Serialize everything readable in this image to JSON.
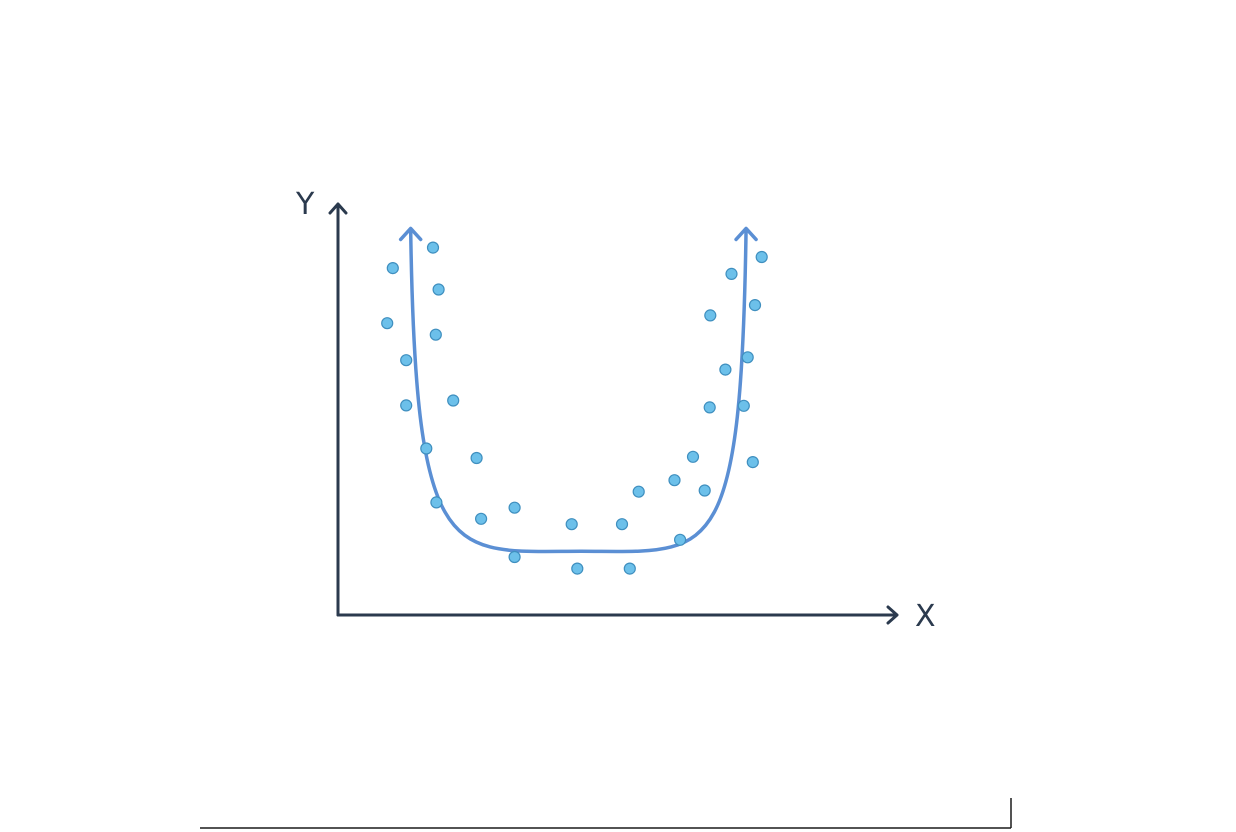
{
  "chart_data": {
    "type": "scatter",
    "xlabel": "X",
    "ylabel": "Y",
    "xlim": [
      0,
      100
    ],
    "ylim": [
      0,
      100
    ],
    "grid": false,
    "legend": "none",
    "colors": {
      "axis": "#2b3a4e",
      "points": "#6cc0ea",
      "curve": "#5b8fd4"
    },
    "series": [
      {
        "points": [
          [
            9.8,
            84.4
          ],
          [
            17.0,
            89.4
          ],
          [
            18.0,
            79.2
          ],
          [
            8.8,
            71.0
          ],
          [
            17.5,
            68.2
          ],
          [
            12.2,
            62.0
          ],
          [
            12.2,
            51.0
          ],
          [
            20.6,
            52.2
          ],
          [
            15.8,
            40.5
          ],
          [
            24.8,
            38.2
          ],
          [
            17.6,
            27.4
          ],
          [
            25.6,
            23.4
          ],
          [
            31.6,
            26.1
          ],
          [
            31.6,
            14.1
          ],
          [
            41.8,
            22.1
          ],
          [
            42.8,
            11.3
          ],
          [
            50.8,
            22.1
          ],
          [
            52.2,
            11.3
          ],
          [
            53.8,
            30.0
          ],
          [
            60.2,
            32.8
          ],
          [
            61.2,
            18.3
          ],
          [
            63.5,
            38.5
          ],
          [
            65.6,
            30.3
          ],
          [
            66.5,
            50.5
          ],
          [
            69.3,
            59.7
          ],
          [
            66.6,
            72.9
          ],
          [
            70.4,
            83.0
          ],
          [
            72.6,
            50.9
          ],
          [
            73.3,
            62.7
          ],
          [
            74.6,
            75.4
          ],
          [
            75.8,
            87.1
          ],
          [
            74.2,
            37.2
          ]
        ]
      },
      {
        "type": "line",
        "shape": "u-curve",
        "vertex": [
          43.5,
          15.5
        ],
        "ends": [
          [
            13.0,
            93.8
          ],
          [
            73.0,
            93.8
          ]
        ]
      }
    ]
  }
}
